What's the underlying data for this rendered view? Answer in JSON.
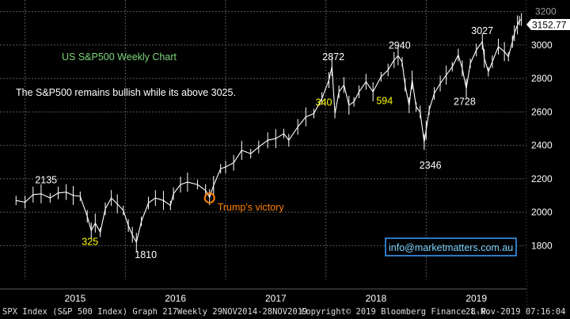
{
  "colors": {
    "background": "#000000",
    "grid": "#5a5a5a",
    "price": "#ffffff",
    "title": "#7cd67c",
    "yellow_label": "#ffff00",
    "trump_marker": "#ff7f00",
    "link_box": "#3aa0ff",
    "last_price_bg": "#ffffff",
    "axis_panel": "#000000"
  },
  "chart_data": {
    "type": "line",
    "title": "US S&P500 Weekly Chart",
    "subtitle": "The S&P500 remains bullish while its above 3025.",
    "ylim": [
      1650,
      3250
    ],
    "y_ticks": [
      1800,
      2000,
      2200,
      2400,
      2600,
      2800,
      3000,
      3200
    ],
    "y_tick_labels": [
      "1800",
      "2000",
      "2200",
      "2400",
      "2600",
      "2800",
      "3000",
      "3200"
    ],
    "x_tick_labels": [
      "2015",
      "2016",
      "2017",
      "2018",
      "2019"
    ],
    "grid": true,
    "last_price": "3152.77",
    "points": [
      [
        2014.91,
        2070
      ],
      [
        2015.0,
        2060
      ],
      [
        2015.08,
        2105
      ],
      [
        2015.16,
        2110
      ],
      [
        2015.25,
        2085
      ],
      [
        2015.33,
        2115
      ],
      [
        2015.41,
        2120
      ],
      [
        2015.48,
        2100
      ],
      [
        2015.55,
        2095
      ],
      [
        2015.62,
        1975
      ],
      [
        2015.66,
        1890
      ],
      [
        2015.7,
        1935
      ],
      [
        2015.75,
        1880
      ],
      [
        2015.8,
        2020
      ],
      [
        2015.86,
        2085
      ],
      [
        2015.92,
        2050
      ],
      [
        2015.98,
        2010
      ],
      [
        2016.03,
        1920
      ],
      [
        2016.07,
        1865
      ],
      [
        2016.11,
        1820
      ],
      [
        2016.16,
        1945
      ],
      [
        2016.23,
        2055
      ],
      [
        2016.3,
        2085
      ],
      [
        2016.38,
        2070
      ],
      [
        2016.45,
        2040
      ],
      [
        2016.48,
        2110
      ],
      [
        2016.55,
        2165
      ],
      [
        2016.62,
        2180
      ],
      [
        2016.72,
        2165
      ],
      [
        2016.8,
        2130
      ],
      [
        2016.84,
        2090
      ],
      [
        2016.88,
        2160
      ],
      [
        2016.95,
        2260
      ],
      [
        2017.0,
        2270
      ],
      [
        2017.08,
        2295
      ],
      [
        2017.16,
        2370
      ],
      [
        2017.25,
        2350
      ],
      [
        2017.33,
        2390
      ],
      [
        2017.42,
        2430
      ],
      [
        2017.5,
        2440
      ],
      [
        2017.58,
        2470
      ],
      [
        2017.63,
        2430
      ],
      [
        2017.72,
        2510
      ],
      [
        2017.8,
        2570
      ],
      [
        2017.88,
        2590
      ],
      [
        2017.96,
        2680
      ],
      [
        2018.03,
        2790
      ],
      [
        2018.06,
        2870
      ],
      [
        2018.09,
        2590
      ],
      [
        2018.13,
        2720
      ],
      [
        2018.18,
        2760
      ],
      [
        2018.23,
        2640
      ],
      [
        2018.28,
        2660
      ],
      [
        2018.33,
        2720
      ],
      [
        2018.4,
        2780
      ],
      [
        2018.47,
        2720
      ],
      [
        2018.55,
        2810
      ],
      [
        2018.62,
        2850
      ],
      [
        2018.68,
        2910
      ],
      [
        2018.72,
        2935
      ],
      [
        2018.76,
        2900
      ],
      [
        2018.79,
        2760
      ],
      [
        2018.83,
        2640
      ],
      [
        2018.86,
        2790
      ],
      [
        2018.9,
        2630
      ],
      [
        2018.94,
        2600
      ],
      [
        2018.98,
        2420
      ],
      [
        2019.0,
        2490
      ],
      [
        2019.03,
        2610
      ],
      [
        2019.08,
        2710
      ],
      [
        2019.14,
        2770
      ],
      [
        2019.2,
        2820
      ],
      [
        2019.26,
        2870
      ],
      [
        2019.32,
        2940
      ],
      [
        2019.36,
        2860
      ],
      [
        2019.4,
        2740
      ],
      [
        2019.44,
        2890
      ],
      [
        2019.5,
        2970
      ],
      [
        2019.56,
        3020
      ],
      [
        2019.58,
        2920
      ],
      [
        2019.62,
        2840
      ],
      [
        2019.66,
        2900
      ],
      [
        2019.72,
        2990
      ],
      [
        2019.78,
        2960
      ],
      [
        2019.82,
        2930
      ],
      [
        2019.86,
        3020
      ],
      [
        2019.88,
        3070
      ],
      [
        2019.91,
        3120
      ],
      [
        2019.93,
        3145
      ],
      [
        2019.95,
        3152.77
      ]
    ],
    "annotations": [
      {
        "text": "2135",
        "x": 2015.1,
        "y": 2135,
        "color": "white"
      },
      {
        "text": "325",
        "x": 2015.66,
        "y": 1890,
        "color": "yellow"
      },
      {
        "text": "1810",
        "x": 2016.11,
        "y": 1810,
        "color": "white"
      },
      {
        "text": "Trump's victory",
        "x": 2016.84,
        "y": 2085,
        "color": "orange"
      },
      {
        "text": "340",
        "x": 2017.96,
        "y": 2600,
        "color": "yellow"
      },
      {
        "text": "2872",
        "x": 2018.06,
        "y": 2872,
        "color": "white"
      },
      {
        "text": "594",
        "x": 2018.55,
        "y": 2600,
        "color": "yellow"
      },
      {
        "text": "2940",
        "x": 2018.72,
        "y": 2940,
        "color": "white"
      },
      {
        "text": "2346",
        "x": 2018.98,
        "y": 2346,
        "color": "white"
      },
      {
        "text": "2728",
        "x": 2019.4,
        "y": 2728,
        "color": "white"
      },
      {
        "text": "3027",
        "x": 2019.56,
        "y": 3027,
        "color": "white"
      }
    ]
  },
  "watermark": "info@marketmatters.com.au",
  "footer": {
    "index": "SPX Index (S&P 500 Index) Graph 217",
    "period": "Weekly 29NOV2014-28NOV2019",
    "copyright": "Copyright© 2019 Bloomberg Finance L.P.",
    "timestamp": "28-Nov-2019 07:16:04"
  }
}
